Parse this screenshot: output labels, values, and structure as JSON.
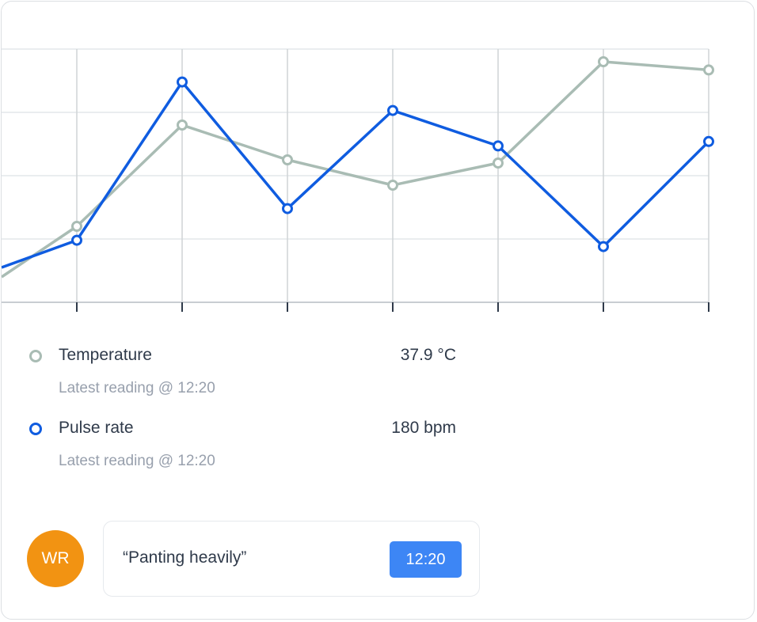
{
  "chart_data": {
    "type": "line",
    "title": "",
    "xlabel": "",
    "ylabel": "",
    "categories": [
      "",
      "",
      "",
      "",
      "",
      "",
      ""
    ],
    "ylim": [
      0,
      4
    ],
    "grid": true,
    "series": [
      {
        "name": "Temperature",
        "color": "#a9bcb4",
        "lead_in": 0.4,
        "values": [
          1.2,
          2.8,
          2.25,
          1.85,
          2.2,
          3.8,
          3.67
        ]
      },
      {
        "name": "Pulse rate",
        "color": "#0f5ce0",
        "lead_in": 0.55,
        "values": [
          0.98,
          3.48,
          1.48,
          3.03,
          2.47,
          0.88,
          2.54
        ]
      }
    ]
  },
  "legend": [
    {
      "name": "Temperature",
      "value": "37.9 °C",
      "sub": "Latest reading @ 12:20",
      "color": "#a9bcb4"
    },
    {
      "name": "Pulse rate",
      "value": "180 bpm",
      "sub": "Latest reading @ 12:20",
      "color": "#0f5ce0"
    }
  ],
  "note": {
    "initials": "WR",
    "avatar_color": "#f29312",
    "text": "“Panting heavily”",
    "time": "12:20",
    "time_color": "#3d86f5"
  }
}
